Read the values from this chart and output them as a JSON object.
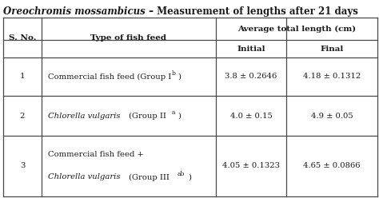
{
  "title_italic": "Oreochromis mossambicus",
  "title_normal": " – Measurement of lengths after 21 days",
  "rows": [
    {
      "sno": "1",
      "initial": "3.8 ± 0.2646",
      "final": "4.18 ± 0.1312"
    },
    {
      "sno": "2",
      "initial": "4.0 ± 0.15",
      "final": "4.9 ± 0.05"
    },
    {
      "sno": "3",
      "initial": "4.05 ± 0.1323",
      "final": "4.65 ± 0.0866"
    }
  ],
  "bg_color": "#ffffff",
  "text_color": "#1a1a1a",
  "border_color": "#4a4a4a",
  "fig_width": 4.74,
  "fig_height": 2.48,
  "dpi": 100
}
